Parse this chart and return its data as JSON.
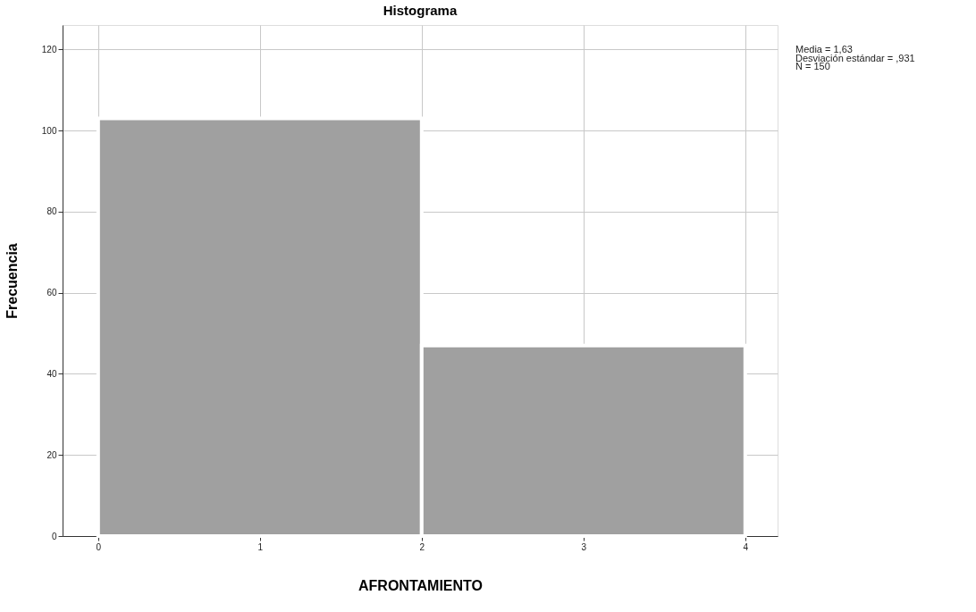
{
  "chart_data": {
    "type": "histogram",
    "title": "Histograma",
    "xlabel": "AFRONTAMIENTO",
    "ylabel": "Frecuencia",
    "bins": [
      0,
      2,
      4
    ],
    "values": [
      103,
      47
    ],
    "color": "#a0a0a0",
    "xlim": [
      -0.22,
      4.2
    ],
    "ylim": [
      0,
      126
    ],
    "xticks": [
      0,
      1,
      2,
      3,
      4
    ],
    "yticks": [
      0,
      20,
      40,
      60,
      80,
      100,
      120
    ],
    "grid": true,
    "annotations": [
      "Media = 1,63",
      "Desviación estándar = ,931",
      "N = 150"
    ]
  }
}
